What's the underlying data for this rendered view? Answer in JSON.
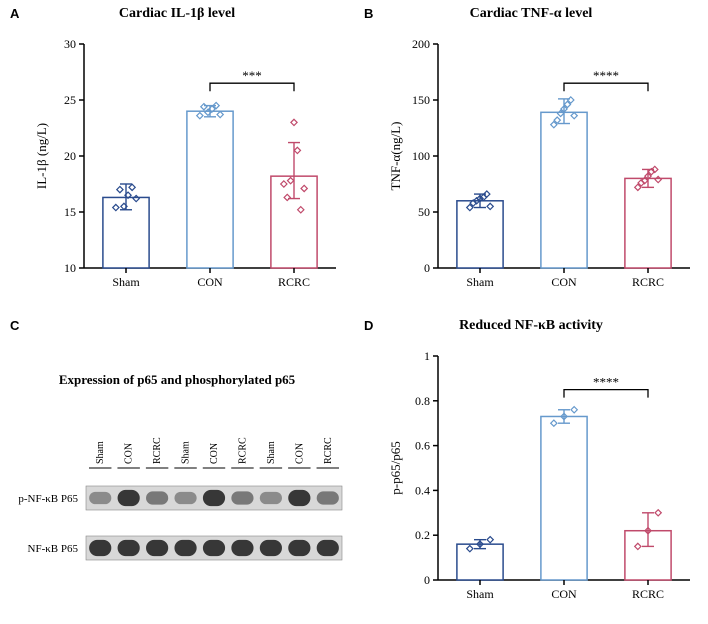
{
  "panels": {
    "A": {
      "letter": "A",
      "title": "Cardiac IL-1β level",
      "title_fontsize": 14,
      "ylabel": "IL-1β (ng/L)",
      "label_fontsize": 13,
      "categories": [
        "Sham",
        "CON",
        "RCRC"
      ],
      "tick_fontsize": 12,
      "ylim": [
        10,
        30
      ],
      "ytick_step": 5,
      "bar_colors": [
        "#ffffff",
        "#ffffff",
        "#ffffff"
      ],
      "bar_border_colors": [
        "#2a4b8d",
        "#6699cc",
        "#c04a6b"
      ],
      "bar_border_width": 1.5,
      "bar_width": 0.55,
      "means": [
        16.3,
        24.0,
        18.2
      ],
      "error_low": [
        1.1,
        0.5,
        2.0
      ],
      "error_high": [
        1.2,
        0.5,
        3.0
      ],
      "scatter_points": [
        [
          15.4,
          17.0,
          15.5,
          16.5,
          17.2,
          16.2
        ],
        [
          23.6,
          24.4,
          23.9,
          24.2,
          24.5,
          23.7
        ],
        [
          17.5,
          16.3,
          17.8,
          23.0,
          20.5,
          15.2,
          17.1
        ]
      ],
      "scatter_marker": "diamond",
      "scatter_size": 5,
      "scatter_colors": [
        "#2a4b8d",
        "#6699cc",
        "#c04a6b"
      ],
      "sig_bracket": {
        "from": 1,
        "to": 2,
        "y": 26.5,
        "label": "***"
      },
      "axis_color": "#000000",
      "axis_width": 1.5
    },
    "B": {
      "letter": "B",
      "title": "Cardiac TNF-α level",
      "title_fontsize": 14,
      "ylabel": "TNF-α(ng/L)",
      "label_fontsize": 13,
      "categories": [
        "Sham",
        "CON",
        "RCRC"
      ],
      "tick_fontsize": 12,
      "ylim": [
        0,
        200
      ],
      "ytick_step": 50,
      "bar_colors": [
        "#ffffff",
        "#ffffff",
        "#ffffff"
      ],
      "bar_border_colors": [
        "#2a4b8d",
        "#6699cc",
        "#c04a6b"
      ],
      "bar_border_width": 1.5,
      "bar_width": 0.55,
      "means": [
        60,
        139,
        80
      ],
      "error_low": [
        6,
        10,
        8
      ],
      "error_high": [
        6,
        12,
        8
      ],
      "scatter_points": [
        [
          54,
          58,
          60,
          62,
          63,
          66,
          55
        ],
        [
          128,
          132,
          138,
          142,
          146,
          150,
          136
        ],
        [
          72,
          76,
          78,
          82,
          86,
          88,
          79
        ]
      ],
      "scatter_marker": "diamond",
      "scatter_size": 5,
      "scatter_colors": [
        "#2a4b8d",
        "#6699cc",
        "#c04a6b"
      ],
      "sig_bracket": {
        "from": 1,
        "to": 2,
        "y": 165,
        "label": "****"
      },
      "axis_color": "#000000",
      "axis_width": 1.5
    },
    "C": {
      "letter": "C",
      "title": "Expression of p65 and phosphorylated p65",
      "title_fontsize": 13,
      "lane_labels": [
        "Sham",
        "CON",
        "RCRC",
        "Sham",
        "CON",
        "RCRC",
        "Sham",
        "CON",
        "RCRC"
      ],
      "lane_fontsize": 10,
      "row_labels": [
        "p-NF-κB P65",
        "NF-κB P65"
      ],
      "row_fontsize": 11,
      "band_intensity": {
        "p-NF-kB": [
          0.25,
          0.9,
          0.4,
          0.25,
          0.9,
          0.4,
          0.25,
          0.9,
          0.4
        ],
        "NF-kB": [
          0.9,
          0.9,
          0.9,
          0.9,
          0.9,
          0.9,
          0.9,
          0.9,
          0.9
        ]
      },
      "background_color": "#d8d8d8",
      "band_color": "#2a2a2a"
    },
    "D": {
      "letter": "D",
      "title": "Reduced NF-κB activity",
      "title_fontsize": 14,
      "ylabel": "p-p65/p65",
      "label_fontsize": 13,
      "categories": [
        "Sham",
        "CON",
        "RCRC"
      ],
      "tick_fontsize": 12,
      "ylim": [
        0.0,
        1.0
      ],
      "ytick_step": 0.2,
      "bar_colors": [
        "#ffffff",
        "#ffffff",
        "#ffffff"
      ],
      "bar_border_colors": [
        "#2a4b8d",
        "#6699cc",
        "#c04a6b"
      ],
      "bar_border_width": 1.5,
      "bar_width": 0.55,
      "means": [
        0.16,
        0.73,
        0.22
      ],
      "error_low": [
        0.02,
        0.03,
        0.07
      ],
      "error_high": [
        0.02,
        0.03,
        0.08
      ],
      "scatter_points": [
        [
          0.14,
          0.16,
          0.18
        ],
        [
          0.7,
          0.73,
          0.76
        ],
        [
          0.15,
          0.22,
          0.3
        ]
      ],
      "scatter_marker": "diamond",
      "scatter_size": 5,
      "scatter_colors": [
        "#2a4b8d",
        "#6699cc",
        "#c04a6b"
      ],
      "sig_bracket": {
        "from": 1,
        "to": 2,
        "y": 0.85,
        "label": "****"
      },
      "axis_color": "#000000",
      "axis_width": 1.5
    }
  }
}
